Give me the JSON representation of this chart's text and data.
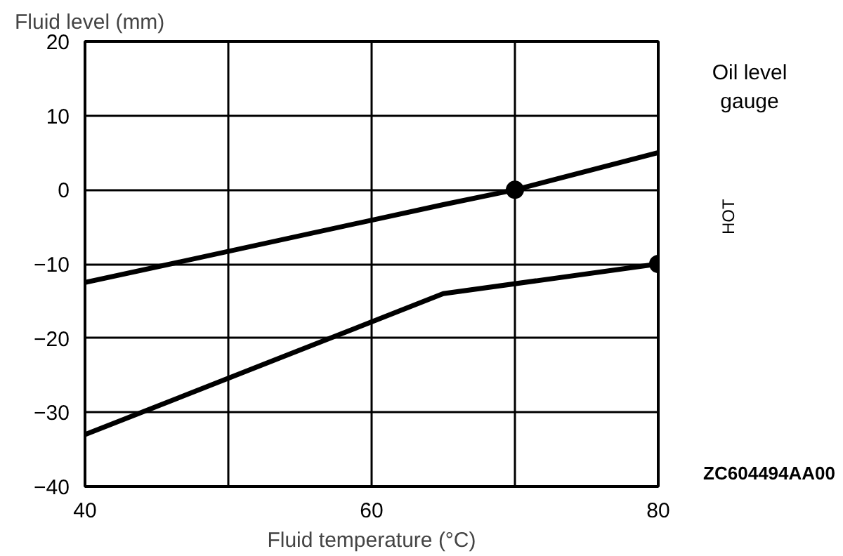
{
  "chart_data": {
    "type": "line",
    "xlabel": "Fluid temperature (°C)",
    "ylabel": "Fluid level (mm)",
    "xlim": [
      40,
      80
    ],
    "ylim": [
      -40,
      20
    ],
    "xticks": [
      40,
      {
        "value": 50,
        "label": null
      },
      60,
      {
        "value": 70,
        "label": null
      },
      80
    ],
    "yticks": [
      -40,
      -30,
      -20,
      -10,
      0,
      10,
      20
    ],
    "grid": true,
    "line_style": "solid",
    "marker": "none",
    "series": [
      {
        "color": "#000000",
        "x": [
          40,
          65,
          70,
          80
        ],
        "values": [
          -12.5,
          -2,
          0,
          5
        ]
      },
      {
        "color": "#000000",
        "x": [
          40,
          65,
          80
        ],
        "values": [
          -33,
          -14,
          -10
        ]
      },
      {
        "type": "scatter",
        "marker": "circle",
        "color": "#000000",
        "x": [
          70,
          80
        ],
        "values": [
          0,
          -10
        ]
      }
    ],
    "annotations": [
      "Oil level gauge",
      "HOT",
      "ZC604494AA00"
    ]
  }
}
